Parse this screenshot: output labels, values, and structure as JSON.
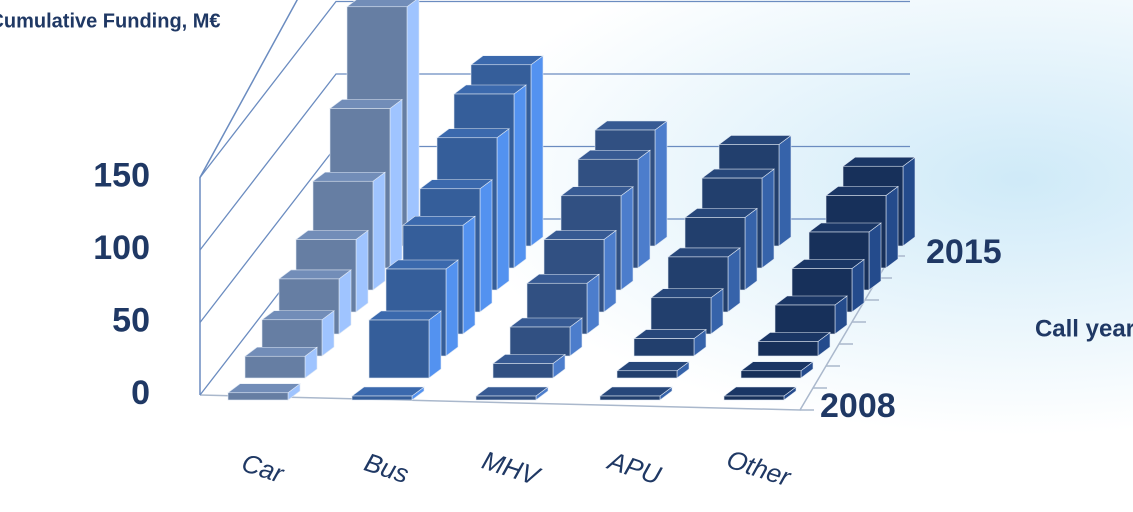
{
  "chart_data": {
    "type": "bar3d",
    "y_label": "Cumulative Funding, M€",
    "depth_label": "Call year",
    "categories": [
      "Car",
      "Bus",
      "MHV",
      "APU",
      "Other"
    ],
    "colors": [
      "#7f9dcc",
      "#4275c0",
      "#3d64a3",
      "#2b4f88",
      "#1d3c70"
    ],
    "depth_categories": [
      "2008",
      null,
      null,
      null,
      null,
      null,
      null,
      "2015"
    ],
    "series": [
      {
        "values": [
          5,
          0,
          0,
          0,
          0
        ]
      },
      {
        "values": [
          15,
          40,
          10,
          5,
          5
        ]
      },
      {
        "values": [
          25,
          60,
          20,
          12,
          10
        ]
      },
      {
        "values": [
          38,
          75,
          35,
          25,
          20
        ]
      },
      {
        "values": [
          50,
          85,
          50,
          38,
          30
        ]
      },
      {
        "values": [
          75,
          105,
          65,
          50,
          40
        ]
      },
      {
        "values": [
          110,
          120,
          75,
          62,
          50
        ]
      },
      {
        "values": [
          165,
          125,
          80,
          70,
          55
        ]
      }
    ],
    "ylim": [
      0,
      200
    ],
    "yticks": [
      0,
      50,
      100,
      150
    ],
    "grid": true
  }
}
